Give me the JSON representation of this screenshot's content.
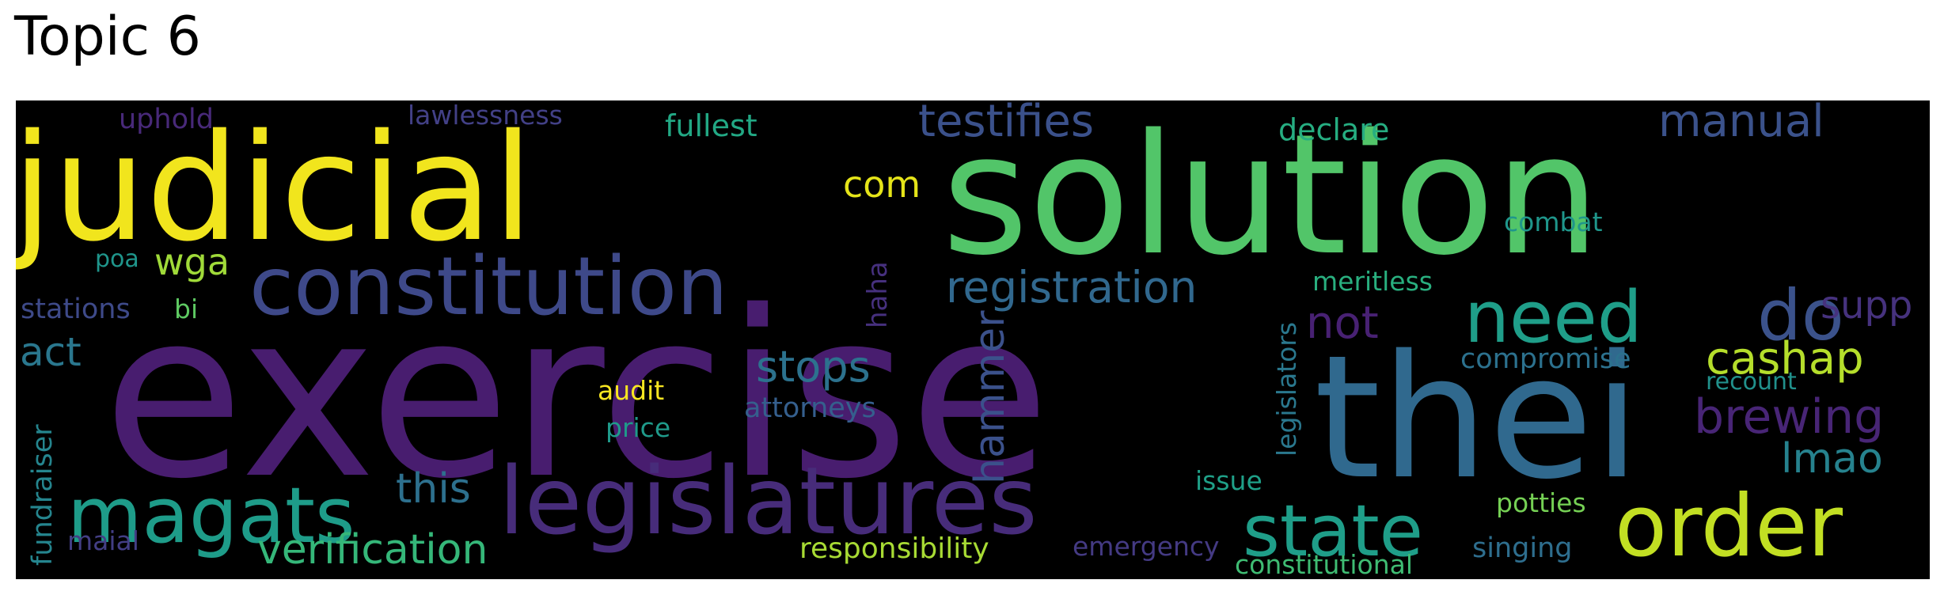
{
  "title": "Topic 6",
  "words": [
    {
      "text": "exercise",
      "color": "#481d6f"
    },
    {
      "text": "solution",
      "color": "#52c569"
    },
    {
      "text": "judicial",
      "color": "#f1e51d"
    },
    {
      "text": "thei",
      "color": "#30698e"
    },
    {
      "text": "legislatures",
      "color": "#472c7a"
    },
    {
      "text": "constitution",
      "color": "#3e4989"
    },
    {
      "text": "order",
      "color": "#c2df23"
    },
    {
      "text": "magats",
      "color": "#1e9c89"
    },
    {
      "text": "state",
      "color": "#1f9e89"
    },
    {
      "text": "need",
      "color": "#1f9e89"
    },
    {
      "text": "do",
      "color": "#3b528b"
    },
    {
      "text": "testifies",
      "color": "#3b518b"
    },
    {
      "text": "registration",
      "color": "#31688e"
    },
    {
      "text": "brewing",
      "color": "#482576"
    },
    {
      "text": "manual",
      "color": "#3b528b"
    },
    {
      "text": "stops",
      "color": "#2c728e"
    },
    {
      "text": "verification",
      "color": "#35b779"
    },
    {
      "text": "cashap",
      "color": "#b5de2b"
    },
    {
      "text": "hammer",
      "color": "#3b518b"
    },
    {
      "text": "com",
      "color": "#e5e419"
    },
    {
      "text": "this",
      "color": "#2d708e"
    },
    {
      "text": "lmao",
      "color": "#26828e"
    },
    {
      "text": "not",
      "color": "#482173"
    },
    {
      "text": "supp",
      "color": "#46327e"
    },
    {
      "text": "act",
      "color": "#2a778e"
    },
    {
      "text": "wga",
      "color": "#a0da39"
    },
    {
      "text": "declare",
      "color": "#26ad81"
    },
    {
      "text": "fullest",
      "color": "#22a884"
    },
    {
      "text": "uphold",
      "color": "#482979"
    },
    {
      "text": "lawlessness",
      "color": "#424086"
    },
    {
      "text": "responsibility",
      "color": "#a8db34"
    },
    {
      "text": "singing",
      "color": "#2e6e8e"
    },
    {
      "text": "constitutional",
      "color": "#3fbc73"
    },
    {
      "text": "compromise",
      "color": "#2c718e"
    },
    {
      "text": "combat",
      "color": "#1f968b"
    },
    {
      "text": "meritless",
      "color": "#29af7f"
    },
    {
      "text": "legislators",
      "color": "#2a788e"
    },
    {
      "text": "emergency",
      "color": "#443a83"
    },
    {
      "text": "potties",
      "color": "#75d054"
    },
    {
      "text": "issue",
      "color": "#1fa088"
    },
    {
      "text": "recount",
      "color": "#21918c"
    },
    {
      "text": "attorneys",
      "color": "#355f8d"
    },
    {
      "text": "audit",
      "color": "#f8e621"
    },
    {
      "text": "price",
      "color": "#1f9a8a"
    },
    {
      "text": "haha",
      "color": "#46307e"
    },
    {
      "text": "stations",
      "color": "#3e4a89"
    },
    {
      "text": "bi",
      "color": "#5ec962"
    },
    {
      "text": "poa",
      "color": "#1f958b"
    },
    {
      "text": "fundraiser",
      "color": "#25858e"
    },
    {
      "text": "maial",
      "color": "#433e85"
    }
  ]
}
